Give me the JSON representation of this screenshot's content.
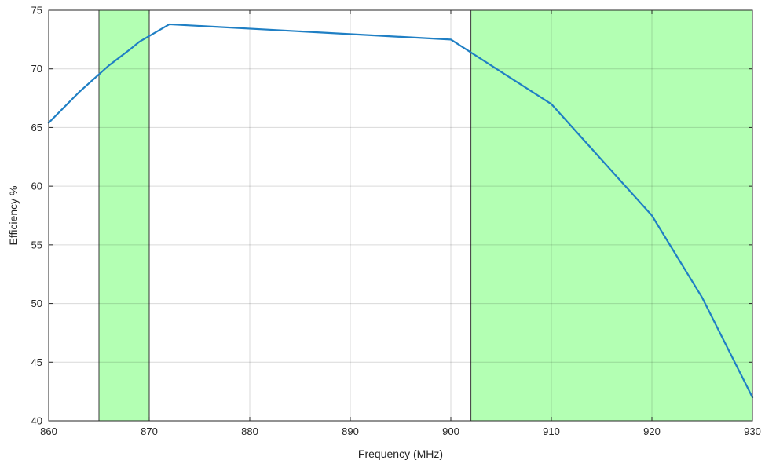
{
  "chart_data": {
    "type": "line",
    "title": "",
    "xlabel": "Frequency (MHz)",
    "ylabel": "Efficiency %",
    "xlim": [
      860,
      930
    ],
    "ylim": [
      40,
      75
    ],
    "xticks": [
      860,
      870,
      880,
      890,
      900,
      910,
      920,
      930
    ],
    "yticks": [
      40,
      45,
      50,
      55,
      60,
      65,
      70,
      75
    ],
    "grid": true,
    "legend": "none",
    "series": [
      {
        "color": "#1f7fc4",
        "x": [
          860,
          863,
          866,
          868,
          869,
          872,
          900,
          910,
          920,
          925,
          930
        ],
        "y": [
          65.4,
          68.0,
          70.3,
          71.6,
          72.3,
          73.8,
          72.5,
          67.0,
          57.5,
          50.5,
          42.0
        ]
      }
    ],
    "shaded_regions": [
      {
        "x": [
          865,
          870
        ],
        "color": "#b3ffb3"
      },
      {
        "x": [
          902,
          930
        ],
        "color": "#b3ffb3"
      }
    ]
  }
}
